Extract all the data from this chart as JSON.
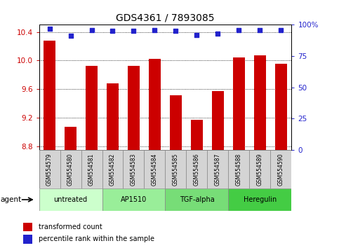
{
  "title": "GDS4361 / 7893085",
  "samples": [
    "GSM554579",
    "GSM554580",
    "GSM554581",
    "GSM554582",
    "GSM554583",
    "GSM554584",
    "GSM554585",
    "GSM554586",
    "GSM554587",
    "GSM554588",
    "GSM554589",
    "GSM554590"
  ],
  "bar_values": [
    10.28,
    9.07,
    9.93,
    9.68,
    9.93,
    10.02,
    9.52,
    9.17,
    9.57,
    10.04,
    10.07,
    9.96
  ],
  "percentile_values": [
    97,
    91,
    96,
    95,
    95,
    96,
    95,
    92,
    93,
    96,
    96,
    96
  ],
  "bar_color": "#cc0000",
  "dot_color": "#2222cc",
  "ylim_left": [
    8.75,
    10.5
  ],
  "ylim_right": [
    0,
    100
  ],
  "yticks_left": [
    8.8,
    9.2,
    9.6,
    10.0,
    10.4
  ],
  "yticks_right": [
    0,
    25,
    50,
    75,
    100
  ],
  "ytick_labels_right": [
    "0",
    "25",
    "50",
    "75",
    "100%"
  ],
  "agent_groups": [
    {
      "label": "untreated",
      "start": 0,
      "end": 3,
      "color": "#ccffcc"
    },
    {
      "label": "AP1510",
      "start": 3,
      "end": 6,
      "color": "#99ee99"
    },
    {
      "label": "TGF-alpha",
      "start": 6,
      "end": 9,
      "color": "#77dd77"
    },
    {
      "label": "Heregulin",
      "start": 9,
      "end": 12,
      "color": "#44cc44"
    }
  ],
  "agent_label": "agent",
  "legend_bar_label": "transformed count",
  "legend_dot_label": "percentile rank within the sample",
  "background_color": "#ffffff",
  "plot_bg_color": "#ffffff",
  "title_fontsize": 10,
  "tick_fontsize": 7.5,
  "bar_width": 0.55
}
